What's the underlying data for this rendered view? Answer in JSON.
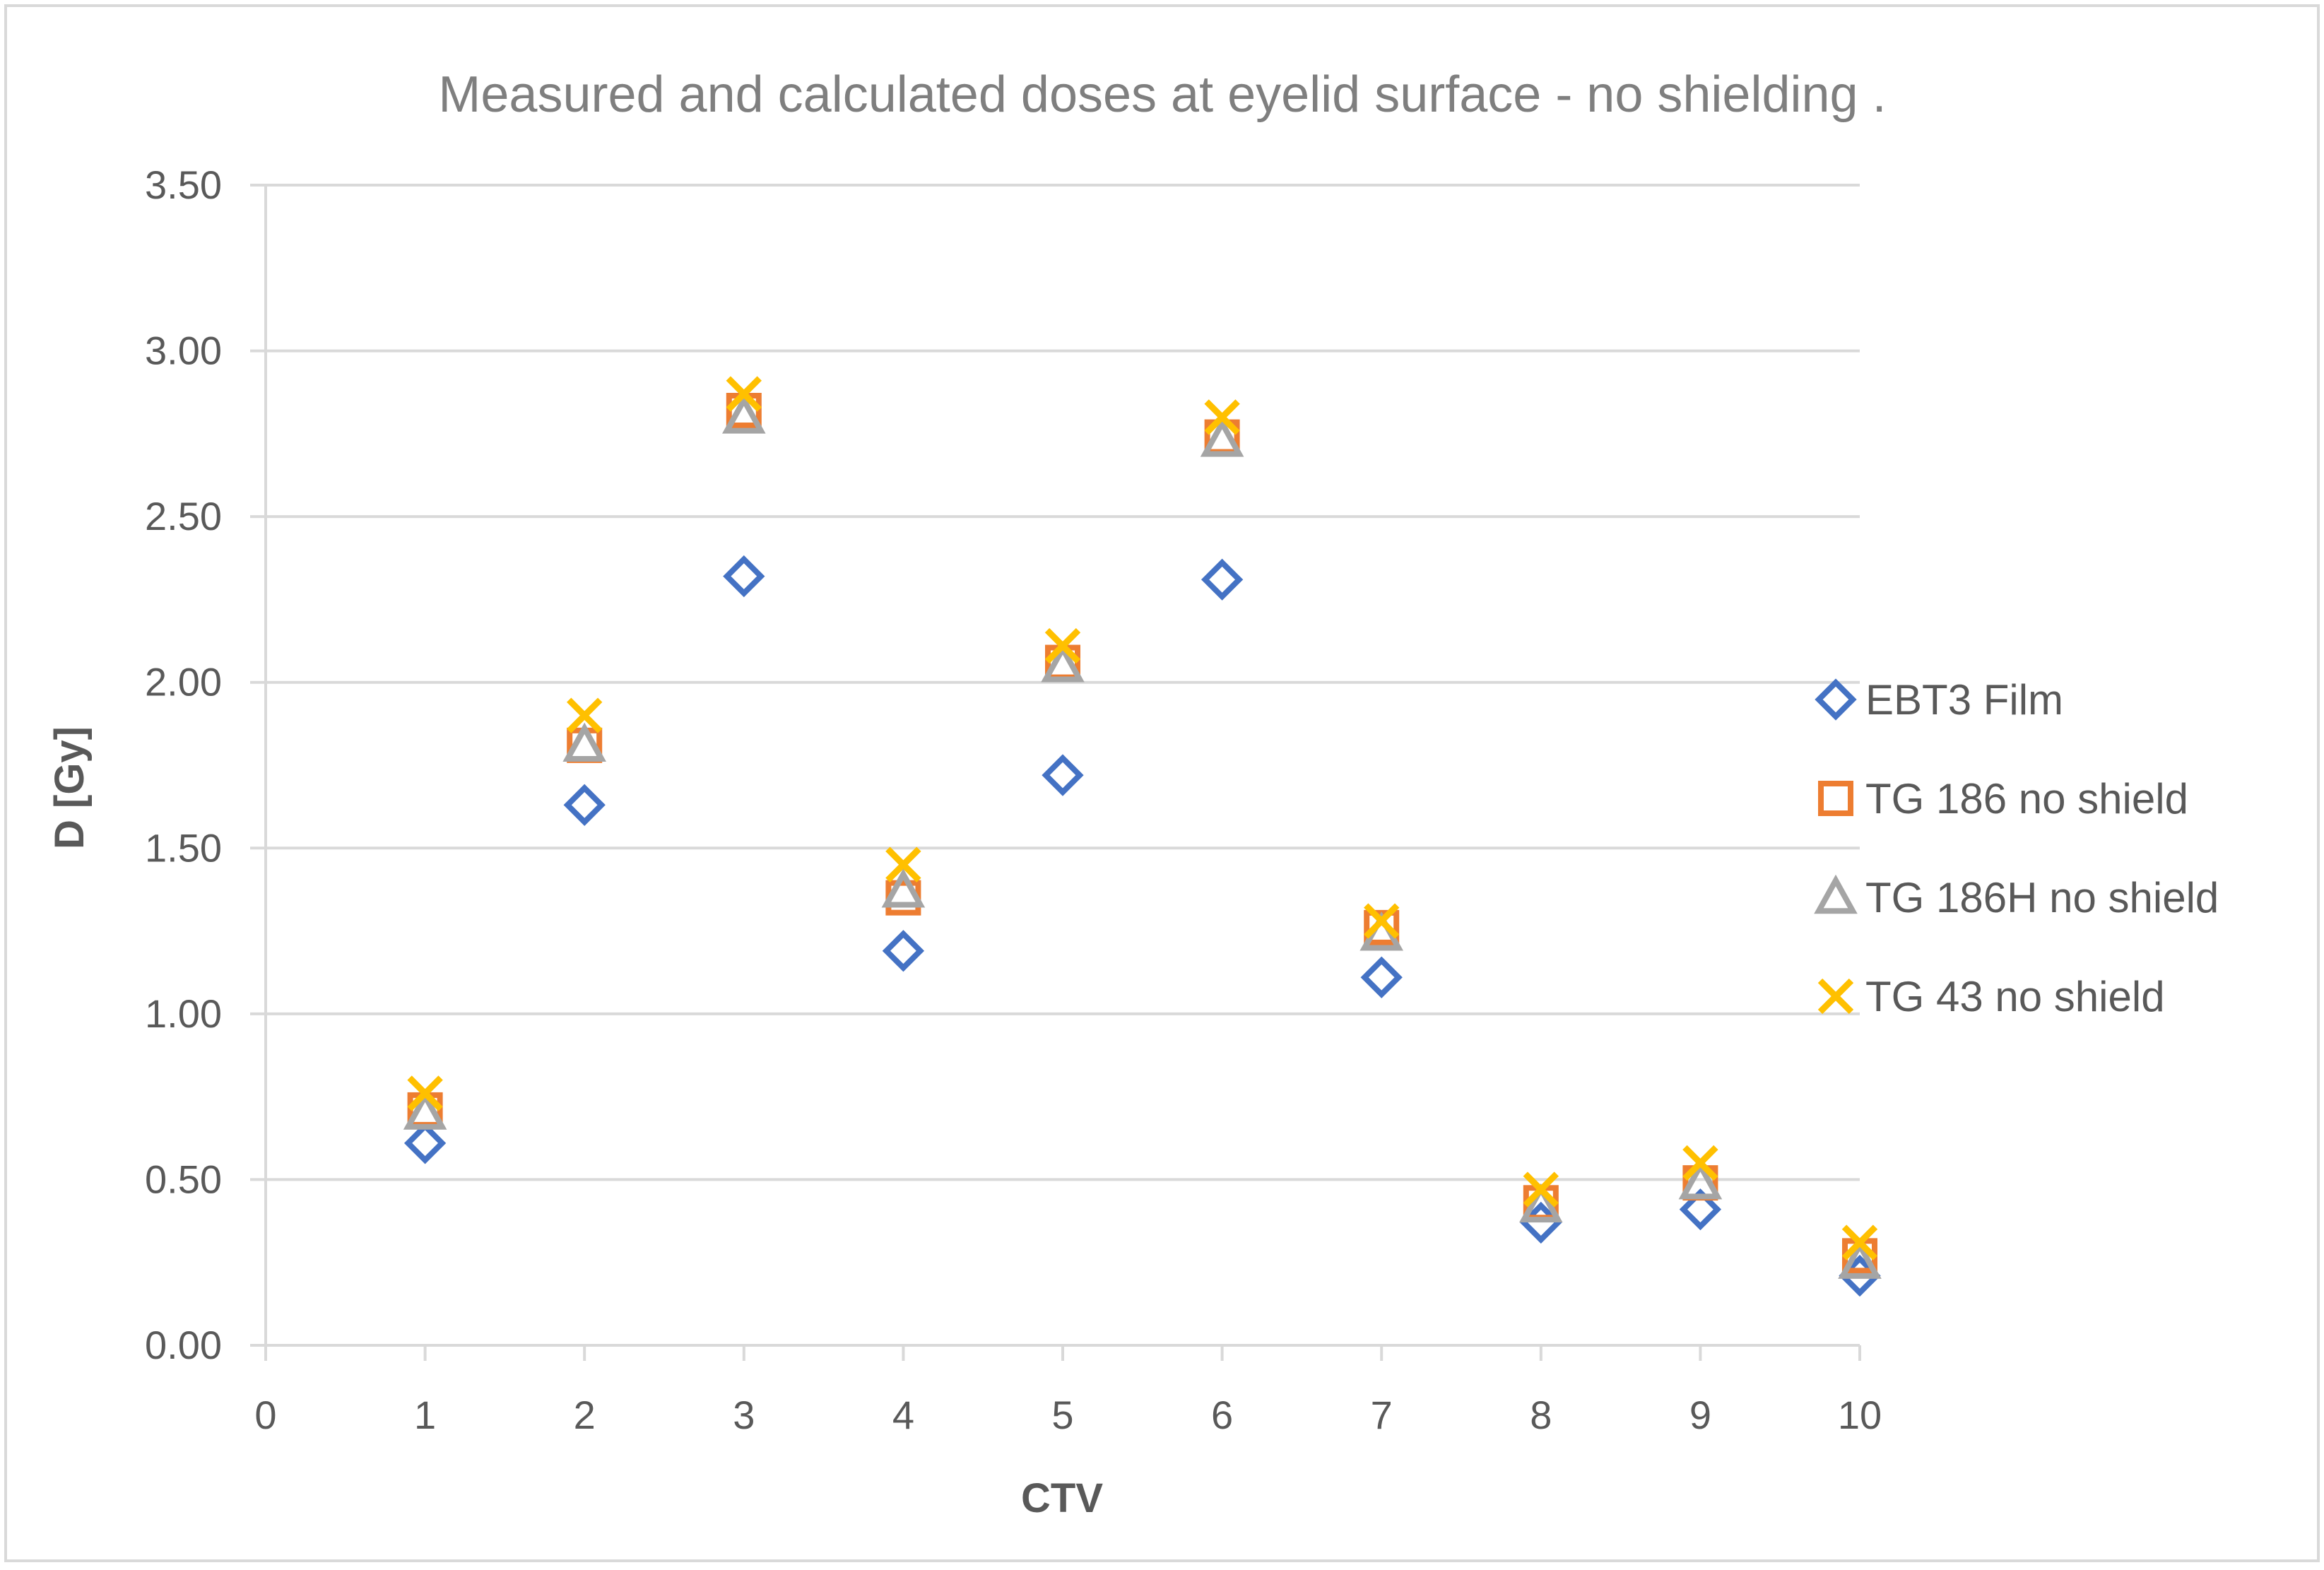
{
  "chart_data": {
    "type": "scatter",
    "title": "Measured and calculated doses at eyelid surface - no shielding .",
    "xlabel": "CTV",
    "ylabel": "D [Gy]",
    "xlim": [
      0,
      10
    ],
    "ylim": [
      0,
      3.5
    ],
    "x_ticks": [
      "0",
      "1",
      "2",
      "3",
      "4",
      "5",
      "6",
      "7",
      "8",
      "9",
      "10"
    ],
    "y_ticks": [
      "0.00",
      "0.50",
      "1.00",
      "1.50",
      "2.00",
      "2.50",
      "3.00",
      "3.50"
    ],
    "grid": true,
    "legend_position": "right",
    "series": [
      {
        "name": "EBT3 Film",
        "marker": "diamond",
        "color": "#4472C4",
        "x": [
          1,
          2,
          3,
          4,
          5,
          6,
          7,
          8,
          9,
          10
        ],
        "values": [
          0.61,
          1.63,
          2.32,
          1.19,
          1.72,
          2.31,
          1.11,
          0.37,
          0.41,
          0.21
        ]
      },
      {
        "name": "TG 186 no shield",
        "marker": "square",
        "color": "#ED7D31",
        "x": [
          1,
          2,
          3,
          4,
          5,
          6,
          7,
          8,
          9,
          10
        ],
        "values": [
          0.71,
          1.81,
          2.82,
          1.35,
          2.06,
          2.74,
          1.26,
          0.43,
          0.49,
          0.27
        ]
      },
      {
        "name": "TG 186H no shield",
        "marker": "triangle",
        "color": "#A5A5A5",
        "x": [
          1,
          2,
          3,
          4,
          5,
          6,
          7,
          8,
          9,
          10
        ],
        "values": [
          0.7,
          1.81,
          2.8,
          1.37,
          2.05,
          2.73,
          1.24,
          0.42,
          0.49,
          0.25
        ]
      },
      {
        "name": "TG 43 no shield",
        "marker": "x",
        "color": "#FFC000",
        "x": [
          1,
          2,
          3,
          4,
          5,
          6,
          7,
          8,
          9,
          10
        ],
        "values": [
          0.76,
          1.9,
          2.87,
          1.45,
          2.11,
          2.8,
          1.28,
          0.47,
          0.55,
          0.31
        ]
      }
    ]
  }
}
